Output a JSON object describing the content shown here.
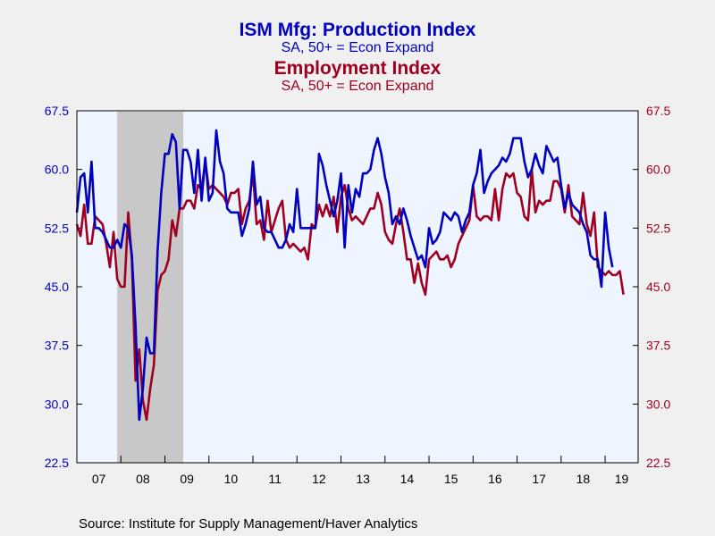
{
  "chart_data": {
    "type": "line",
    "titles": [
      {
        "title": "ISM Mfg: Production Index",
        "subtitle": "SA, 50+ = Econ Expand",
        "color": "#0000c0"
      },
      {
        "title": "Employment Index",
        "subtitle": "SA, 50+ = Econ Expand",
        "color": "#a00020"
      }
    ],
    "source": "Source:  Institute for Supply Management/Haver Analytics",
    "x_tick_labels": [
      "07",
      "08",
      "09",
      "10",
      "11",
      "12",
      "13",
      "14",
      "15",
      "16",
      "17",
      "18",
      "19"
    ],
    "x_range": [
      "2007-01",
      "2019-10"
    ],
    "ylim": [
      22.5,
      67.5
    ],
    "y_ticks": [
      "22.5",
      "30.0",
      "37.5",
      "45.0",
      "52.5",
      "60.0",
      "67.5"
    ],
    "left_axis_color": "#0000c0",
    "right_axis_color": "#a00020",
    "recession": {
      "start": "2007-12",
      "end": "2009-06",
      "color": "#c8c8c8"
    },
    "plot_background": "#eef5ff",
    "series": [
      {
        "name": "ISM Mfg: Production Index",
        "color": "#0000c0",
        "start": "2007-01",
        "values": [
          54.5,
          59,
          59.5,
          54.5,
          61,
          52.5,
          52.5,
          52,
          51,
          50,
          50,
          51,
          50,
          53,
          52.5,
          49,
          40,
          28,
          32,
          38.5,
          36.5,
          36.5,
          49.5,
          57,
          62,
          62,
          64.5,
          63.5,
          55,
          62.5,
          62.5,
          61,
          57,
          62.5,
          56,
          61.5,
          56,
          57,
          65,
          61,
          59.5,
          55,
          54.5,
          54.5,
          54.5,
          51.5,
          53,
          55,
          61,
          55.5,
          56.5,
          52.5,
          52,
          52,
          51,
          50,
          50,
          51,
          53,
          52,
          57.5,
          52.5,
          52.5,
          52.5,
          52.5,
          52.5,
          62,
          60.5,
          58,
          56,
          54,
          56,
          59.5,
          50,
          58,
          54.5,
          57.5,
          56.5,
          59.5,
          59.5,
          60,
          62.5,
          64,
          62,
          59,
          57,
          53,
          54,
          53,
          55,
          53.5,
          51.5,
          50,
          48.5,
          49,
          47.5,
          52.5,
          50.5,
          51,
          52,
          54.5,
          54,
          53.5,
          54.5,
          54,
          52,
          53.5,
          54.5,
          58,
          59.5,
          62.5,
          57,
          58.5,
          59.5,
          60,
          60.5,
          61.5,
          61,
          62,
          64,
          64,
          64,
          61,
          59,
          60,
          62,
          60.5,
          59.5,
          63,
          62,
          61,
          61.5,
          58,
          55,
          57,
          55.5,
          55,
          54.5,
          53,
          52,
          49,
          48.5,
          48.5,
          45,
          54.5,
          50,
          47.5
        ]
      },
      {
        "name": "Employment Index",
        "color": "#a00020",
        "start": "2007-01",
        "values": [
          53,
          51.5,
          55.5,
          50.5,
          50.5,
          54,
          53.5,
          53,
          50.5,
          47.5,
          52,
          46,
          45,
          45,
          54.5,
          48.5,
          33,
          37,
          30.5,
          28,
          32,
          35,
          44.5,
          46.5,
          47,
          48.5,
          53.5,
          51.5,
          55,
          55,
          56,
          56,
          55,
          58,
          57.5,
          61,
          57.5,
          58,
          57.5,
          57,
          56.5,
          55.5,
          57,
          57,
          57.5,
          53,
          55,
          56,
          59.5,
          53,
          53.5,
          51,
          56,
          52,
          53.5,
          55,
          56,
          51,
          50,
          50.5,
          50,
          49.5,
          50,
          48.5,
          53,
          52.5,
          55.5,
          54,
          55.5,
          54,
          56.5,
          52,
          56.5,
          58,
          55,
          53.5,
          54,
          53.5,
          53,
          54,
          55,
          55,
          57,
          55.5,
          52,
          51,
          50.5,
          53,
          55,
          52,
          48.5,
          48.5,
          45.5,
          48,
          45.5,
          44,
          48.5,
          49,
          49.5,
          48.5,
          48.5,
          49,
          47.5,
          48.5,
          50.5,
          51.5,
          52.5,
          53.5,
          58,
          54,
          53.5,
          54,
          54,
          53.5,
          57.5,
          53.5,
          57.5,
          59.5,
          59,
          59.5,
          57,
          56.5,
          54,
          53.5,
          60,
          54.5,
          56,
          55.5,
          56,
          56,
          58.5,
          58.5,
          57.5,
          54.5,
          58,
          54,
          53.5,
          53,
          57,
          53,
          51.5,
          54.5,
          47.5,
          47,
          46.5,
          47,
          46.5,
          46.5,
          47,
          44
        ]
      }
    ]
  }
}
